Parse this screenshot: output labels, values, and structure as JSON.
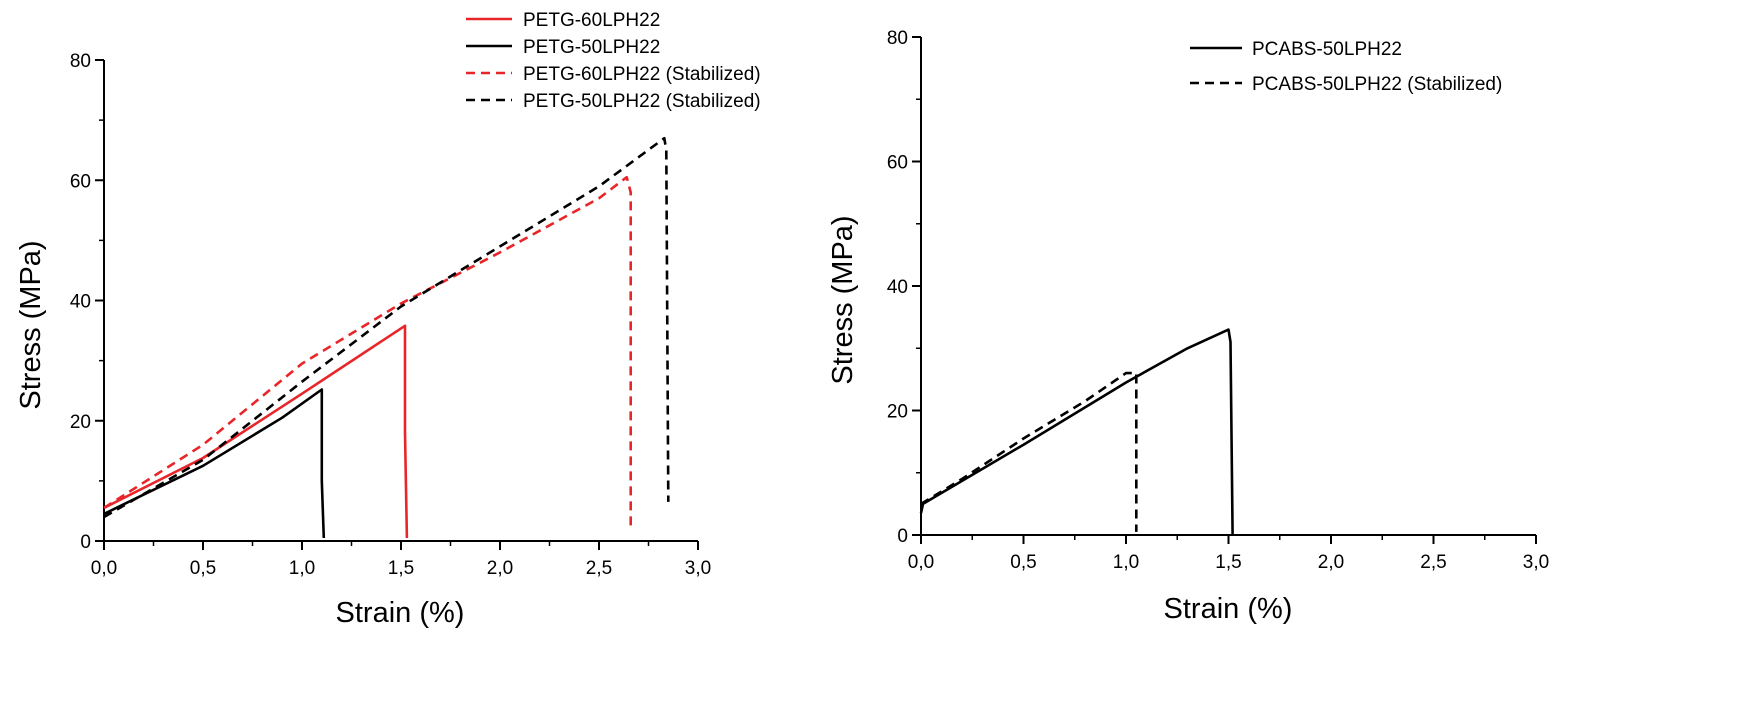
{
  "chart_data": [
    {
      "type": "line",
      "title": "",
      "xlabel": "Strain (%)",
      "ylabel": "Stress (MPa)",
      "xlim": [
        0,
        3.0
      ],
      "ylim": [
        0,
        80
      ],
      "xticks": [
        "0,0",
        "0,5",
        "1,0",
        "1,5",
        "2,0",
        "2,5",
        "3,0"
      ],
      "yticks": [
        "0",
        "20",
        "40",
        "60",
        "80"
      ],
      "grid": false,
      "legend_position": "top-right",
      "series": [
        {
          "name": "PETG-60LPH22",
          "color": "#e8262a",
          "dash": "solid",
          "points": [
            [
              0,
              5.5
            ],
            [
              0.5,
              13.8
            ],
            [
              1.0,
              24.5
            ],
            [
              1.52,
              35.8
            ],
            [
              1.52,
              18
            ],
            [
              1.53,
              0.5
            ]
          ]
        },
        {
          "name": "PETG-50LPH22",
          "color": "#000000",
          "dash": "solid",
          "points": [
            [
              0,
              4.5
            ],
            [
              0.5,
              12.5
            ],
            [
              0.9,
              20.5
            ],
            [
              1.1,
              25.2
            ],
            [
              1.1,
              10
            ],
            [
              1.11,
              0.5
            ]
          ]
        },
        {
          "name": "PETG-60LPH22 (Stabilized)",
          "color": "#e8262a",
          "dash": "dashed",
          "points": [
            [
              0,
              5.5
            ],
            [
              0.5,
              16
            ],
            [
              1.0,
              29.5
            ],
            [
              1.5,
              39.5
            ],
            [
              2.0,
              48
            ],
            [
              2.5,
              57
            ],
            [
              2.64,
              60.5
            ],
            [
              2.66,
              58
            ],
            [
              2.66,
              2.5
            ]
          ]
        },
        {
          "name": "PETG-50LPH22 (Stabilized)",
          "color": "#000000",
          "dash": "dashed",
          "points": [
            [
              0,
              4
            ],
            [
              0.5,
              13.5
            ],
            [
              1.0,
              26.5
            ],
            [
              1.5,
              39
            ],
            [
              2.0,
              49
            ],
            [
              2.5,
              59
            ],
            [
              2.83,
              67
            ],
            [
              2.84,
              65
            ],
            [
              2.85,
              6.5
            ]
          ]
        }
      ]
    },
    {
      "type": "line",
      "title": "",
      "xlabel": "Strain (%)",
      "ylabel": "Stress (MPa)",
      "xlim": [
        0,
        3.0
      ],
      "ylim": [
        0,
        80
      ],
      "xticks": [
        "0,0",
        "0,5",
        "1,0",
        "1,5",
        "2,0",
        "2,5",
        "3,0"
      ],
      "yticks": [
        "0",
        "20",
        "40",
        "60",
        "80"
      ],
      "grid": false,
      "legend_position": "top-right",
      "series": [
        {
          "name": "PCABS-50LPH22",
          "color": "#000000",
          "dash": "solid",
          "points": [
            [
              0,
              3.5
            ],
            [
              0.01,
              5
            ],
            [
              0.5,
              14.5
            ],
            [
              1.0,
              24.5
            ],
            [
              1.3,
              30
            ],
            [
              1.5,
              33
            ],
            [
              1.51,
              31
            ],
            [
              1.52,
              0
            ]
          ]
        },
        {
          "name": "PCABS-50LPH22 (Stabilized)",
          "color": "#000000",
          "dash": "dashed",
          "points": [
            [
              0,
              5
            ],
            [
              0.2,
              9
            ],
            [
              0.5,
              15.5
            ],
            [
              0.8,
              21.5
            ],
            [
              1.0,
              26
            ],
            [
              1.05,
              26
            ],
            [
              1.05,
              0.5
            ]
          ]
        }
      ]
    }
  ]
}
